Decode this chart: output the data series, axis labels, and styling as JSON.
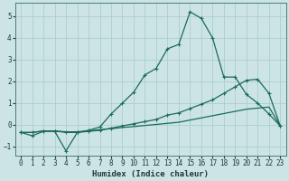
{
  "xlabel": "Humidex (Indice chaleur)",
  "xlim": [
    -0.5,
    23.5
  ],
  "ylim": [
    -1.4,
    5.6
  ],
  "xticks": [
    0,
    1,
    2,
    3,
    4,
    5,
    6,
    7,
    8,
    9,
    10,
    11,
    12,
    13,
    14,
    15,
    16,
    17,
    18,
    19,
    20,
    21,
    22,
    23
  ],
  "yticks": [
    -1,
    0,
    1,
    2,
    3,
    4,
    5
  ],
  "bg_color": "#cde4e4",
  "grid_color": "#aacfcf",
  "line_color": "#1a6b5a",
  "line1_x": [
    0,
    1,
    2,
    3,
    4,
    5,
    6,
    7,
    8,
    9,
    10,
    11,
    12,
    13,
    14,
    15,
    16,
    17,
    18,
    19,
    20,
    21,
    22,
    23
  ],
  "line1_y": [
    -0.35,
    -0.5,
    -0.3,
    -0.3,
    -1.2,
    -0.35,
    -0.25,
    -0.1,
    0.5,
    1.0,
    1.5,
    2.3,
    2.6,
    3.5,
    3.7,
    5.2,
    4.9,
    4.0,
    2.2,
    2.2,
    1.4,
    1.0,
    0.5,
    -0.05
  ],
  "line2_x": [
    0,
    1,
    2,
    3,
    4,
    5,
    6,
    7,
    8,
    9,
    10,
    11,
    12,
    13,
    14,
    15,
    16,
    17,
    18,
    19,
    20,
    21,
    22,
    23
  ],
  "line2_y": [
    -0.35,
    -0.35,
    -0.28,
    -0.28,
    -0.35,
    -0.35,
    -0.3,
    -0.25,
    -0.15,
    -0.05,
    0.05,
    0.15,
    0.25,
    0.45,
    0.55,
    0.75,
    0.95,
    1.15,
    1.45,
    1.75,
    2.05,
    2.1,
    1.45,
    -0.05
  ],
  "line3_x": [
    0,
    1,
    2,
    3,
    4,
    5,
    6,
    7,
    8,
    9,
    10,
    11,
    12,
    13,
    14,
    15,
    16,
    17,
    18,
    19,
    20,
    21,
    22,
    23
  ],
  "line3_y": [
    -0.35,
    -0.35,
    -0.28,
    -0.28,
    -0.32,
    -0.32,
    -0.28,
    -0.22,
    -0.18,
    -0.12,
    -0.08,
    -0.03,
    0.02,
    0.07,
    0.12,
    0.22,
    0.32,
    0.42,
    0.52,
    0.62,
    0.72,
    0.77,
    0.82,
    -0.05
  ]
}
